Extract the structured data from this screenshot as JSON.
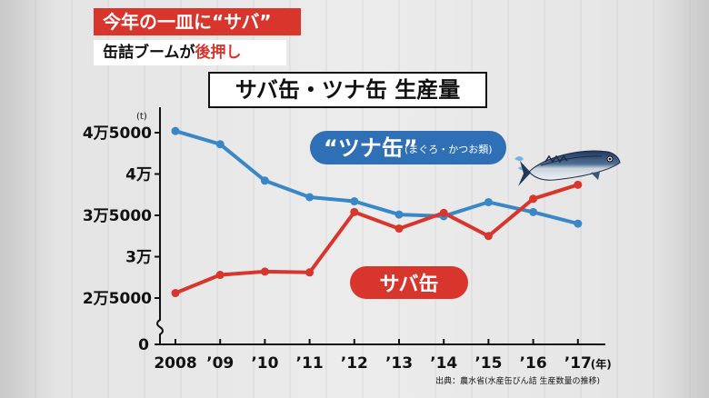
{
  "headline": {
    "line1": "今年の一皿に“サバ”",
    "line2_prefix": "缶詰ブームが",
    "line2_highlight": "後押し"
  },
  "source": "出典：農水省(水産缶びん詰 生産数量の推移)",
  "fish_icon": "mackerel-fish-icon",
  "colors": {
    "tuna": "#3a87c8",
    "saba": "#d8352c",
    "tuna_label_bg": "#2e6fb5",
    "saba_label_bg": "#d8352c"
  },
  "chart_data": {
    "type": "line",
    "title": "サバ缶・ツナ缶 生産量",
    "unit": "(t)",
    "x_unit": "(年)",
    "categories": [
      "2008",
      "’09",
      "’10",
      "’11",
      "’12",
      "’13",
      "’14",
      "’15",
      "’16",
      "’17"
    ],
    "y_ticks": [
      {
        "value": 25000,
        "label": "2万5000"
      },
      {
        "value": 30000,
        "label": "3万"
      },
      {
        "value": 35000,
        "label": "3万5000"
      },
      {
        "value": 40000,
        "label": "4万"
      },
      {
        "value": 45000,
        "label": "4万5000"
      }
    ],
    "y_zero_label": "0",
    "ylim": [
      25000,
      45000
    ],
    "axis_break": true,
    "series": [
      {
        "name": "“ツナ缶”",
        "subname": "(まぐろ・かつお類)",
        "values": [
          45200,
          43600,
          39200,
          37200,
          36700,
          35100,
          34900,
          36600,
          35400,
          34000
        ]
      },
      {
        "name": "サバ缶",
        "values": [
          25600,
          27800,
          28200,
          28100,
          35400,
          33400,
          35300,
          32500,
          37000,
          38700
        ]
      }
    ]
  }
}
